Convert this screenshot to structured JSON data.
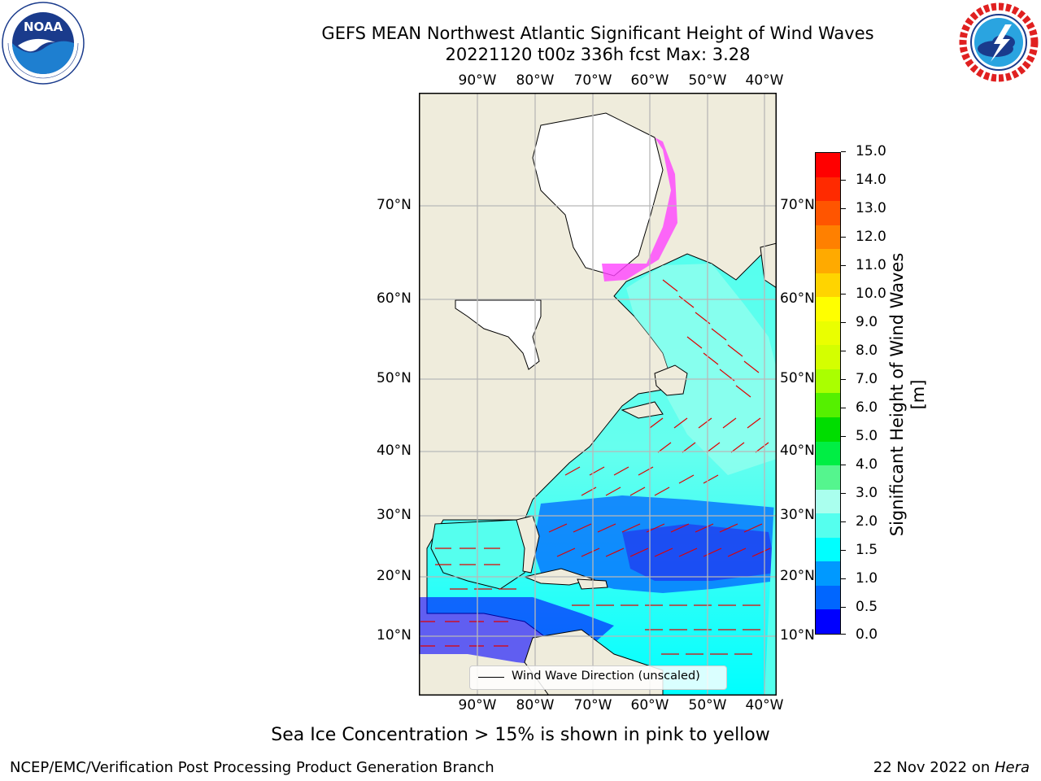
{
  "header": {
    "title": "GEFS MEAN Northwest Atlantic Significant Height of Wind Waves",
    "subtitle": "20221120 t00z 336h fcst   Max: 3.28"
  },
  "logos": {
    "left": {
      "name": "noaa-logo",
      "text": "NOAA",
      "ring": "NATIONAL OCEANIC AND ATMOSPHERIC ADMINISTRATION  U.S. DEPARTMENT OF COMMERCE"
    },
    "right": {
      "name": "nws-logo",
      "ring": "NATIONAL WEATHER SERVICE"
    }
  },
  "map": {
    "lon_labels_top": [
      "90°W",
      "80°W",
      "70°W",
      "60°W",
      "50°W",
      "40°W"
    ],
    "lon_labels_bottom": [
      "90°W",
      "80°W",
      "70°W",
      "60°W",
      "50°W",
      "40°W"
    ],
    "lat_labels_left": [
      "70°N",
      "60°N",
      "50°N",
      "40°N",
      "30°N",
      "20°N",
      "10°N"
    ],
    "lat_labels_right": [
      "70°N",
      "60°N",
      "50°N",
      "40°N",
      "30°N",
      "20°N",
      "10°N"
    ],
    "legend": "Wind Wave Direction (unscaled)",
    "land_color": "#efecdc",
    "arrow_color": "#ff0000"
  },
  "colorbar": {
    "label": "Significant Height of Wind Waves [m]",
    "ticks": [
      "15.0",
      "14.0",
      "13.0",
      "12.0",
      "11.0",
      "10.0",
      "9.0",
      "8.0",
      "7.0",
      "6.0",
      "5.0",
      "4.0",
      "3.0",
      "2.0",
      "1.5",
      "1.0",
      "0.5",
      "0.0"
    ],
    "colors": [
      "#ff0000",
      "#ff2a00",
      "#ff5500",
      "#ff8000",
      "#ffaa00",
      "#ffd400",
      "#ffff00",
      "#eaff00",
      "#d4ff00",
      "#aaff00",
      "#55f000",
      "#00dd00",
      "#00ee44",
      "#55f58e",
      "#aaffee",
      "#55ffee",
      "#00ffff",
      "#0099ff",
      "#0066ff",
      "#0000ff"
    ]
  },
  "notes": {
    "ice": "Sea Ice Concentration > 15% is shown in pink to yellow"
  },
  "footer": {
    "left": "NCEP/EMC/Verification Post Processing Product Generation Branch",
    "right_prefix": "22 Nov 2022 on ",
    "right_host": "Hera"
  }
}
